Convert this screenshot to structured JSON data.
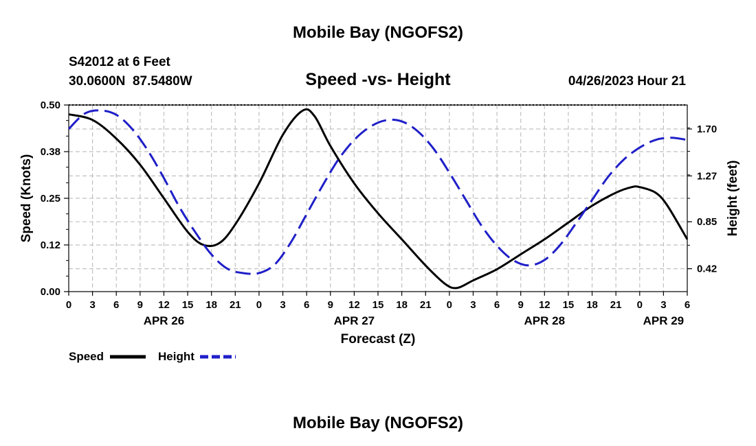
{
  "page": {
    "top_title": "Mobile Bay (NGOFS2)",
    "bottom_title": "Mobile Bay (NGOFS2)"
  },
  "header": {
    "station": "S42012 at 6 Feet",
    "coords": "30.0600N  87.5480W",
    "chart_title": "Speed -vs- Height",
    "forecast_time": "04/26/2023 Hour 21"
  },
  "chart_data": {
    "type": "line",
    "title": "Speed -vs- Height",
    "xlabel": "Forecast (Z)",
    "x_unit": "hours",
    "x_tick_labels": [
      "0",
      "3",
      "6",
      "9",
      "12",
      "15",
      "18",
      "21",
      "0",
      "3",
      "6",
      "9",
      "12",
      "15",
      "18",
      "21",
      "0",
      "3",
      "6",
      "9",
      "12",
      "15",
      "18",
      "21",
      "0",
      "3",
      "6"
    ],
    "date_labels": [
      {
        "label": "APR 26",
        "tick": 4
      },
      {
        "label": "APR 27",
        "tick": 12
      },
      {
        "label": "APR 28",
        "tick": 20
      },
      {
        "label": "APR 29",
        "tick": 25
      }
    ],
    "left_axis": {
      "label": "Speed (Knots)",
      "ylim": [
        0,
        0.5
      ],
      "tick_labels": [
        "0.00",
        "0.12",
        "0.25",
        "0.38",
        "0.50"
      ],
      "tick_values": [
        0,
        0.125,
        0.25,
        0.375,
        0.5
      ]
    },
    "right_axis": {
      "label": "Height (feet)",
      "ylim": [
        0.21,
        1.92
      ],
      "tick_labels": [
        "0.42",
        "0.85",
        "1.27",
        "1.70"
      ],
      "tick_values": [
        0.42,
        0.85,
        1.27,
        1.7
      ]
    },
    "grid": true,
    "series": [
      {
        "name": "Speed",
        "axis": "left",
        "color": "#000000",
        "style": "solid",
        "points": [
          [
            0,
            0.475
          ],
          [
            3,
            0.46
          ],
          [
            6,
            0.41
          ],
          [
            9,
            0.34
          ],
          [
            12,
            0.25
          ],
          [
            15,
            0.16
          ],
          [
            17,
            0.125
          ],
          [
            19,
            0.13
          ],
          [
            21,
            0.18
          ],
          [
            24,
            0.29
          ],
          [
            27,
            0.42
          ],
          [
            29.5,
            0.485
          ],
          [
            31,
            0.47
          ],
          [
            33,
            0.39
          ],
          [
            36,
            0.29
          ],
          [
            39,
            0.21
          ],
          [
            42,
            0.14
          ],
          [
            45,
            0.07
          ],
          [
            47.5,
            0.02
          ],
          [
            49,
            0.01
          ],
          [
            51,
            0.03
          ],
          [
            54,
            0.06
          ],
          [
            57,
            0.1
          ],
          [
            60,
            0.14
          ],
          [
            63,
            0.185
          ],
          [
            66,
            0.23
          ],
          [
            69,
            0.265
          ],
          [
            71,
            0.28
          ],
          [
            72,
            0.28
          ],
          [
            74,
            0.265
          ],
          [
            75.5,
            0.23
          ],
          [
            78,
            0.14
          ]
        ]
      },
      {
        "name": "Height",
        "axis": "right",
        "color": "#1f1fc8",
        "style": "dashed",
        "points": [
          [
            0,
            1.7
          ],
          [
            2,
            1.84
          ],
          [
            4,
            1.87
          ],
          [
            6,
            1.83
          ],
          [
            8,
            1.7
          ],
          [
            10,
            1.5
          ],
          [
            12,
            1.25
          ],
          [
            14,
            0.98
          ],
          [
            16,
            0.75
          ],
          [
            18,
            0.55
          ],
          [
            20,
            0.42
          ],
          [
            22,
            0.38
          ],
          [
            24,
            0.38
          ],
          [
            26,
            0.46
          ],
          [
            28,
            0.66
          ],
          [
            30,
            0.92
          ],
          [
            32,
            1.18
          ],
          [
            34,
            1.42
          ],
          [
            36,
            1.6
          ],
          [
            38,
            1.72
          ],
          [
            40,
            1.78
          ],
          [
            42,
            1.77
          ],
          [
            44,
            1.68
          ],
          [
            46,
            1.52
          ],
          [
            48,
            1.3
          ],
          [
            50,
            1.06
          ],
          [
            52,
            0.82
          ],
          [
            54,
            0.63
          ],
          [
            56,
            0.5
          ],
          [
            58,
            0.45
          ],
          [
            60,
            0.5
          ],
          [
            62,
            0.64
          ],
          [
            64,
            0.84
          ],
          [
            66,
            1.05
          ],
          [
            68,
            1.26
          ],
          [
            70,
            1.42
          ],
          [
            72,
            1.53
          ],
          [
            74,
            1.6
          ],
          [
            76,
            1.62
          ],
          [
            78,
            1.6
          ]
        ]
      }
    ]
  },
  "legend": {
    "speed_label": "Speed",
    "height_label": "Height",
    "speed_color": "#000000",
    "height_color": "#1f1fc8"
  }
}
